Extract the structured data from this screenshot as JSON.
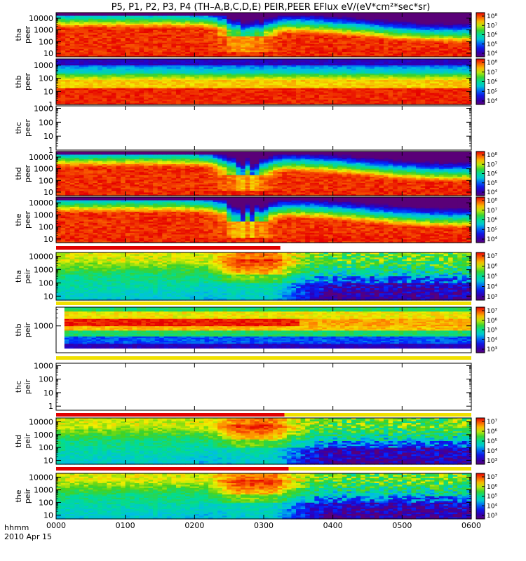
{
  "chart_data": {
    "type": "heatmap",
    "title": "P5, P1, P2, P3, P4 (TH–A,B,C,D,E) PEIR,PEER EFlux eV/(eV*cm²*sec*sr)",
    "footer": {
      "axis_label": "hhmm",
      "date": "2010 Apr 15"
    },
    "x_ticks": [
      "0000",
      "0100",
      "0200",
      "0300",
      "0400",
      "0500",
      "0600"
    ],
    "xlim": [
      "00:00",
      "06:00"
    ],
    "colorscale": "rainbow (purple → blue → cyan → green → yellow → red)",
    "panels": [
      {
        "probe": "tha",
        "species": "peer",
        "ylabel": "tha peer",
        "y_ticks": [
          "10",
          "100",
          "1000",
          "10000"
        ],
        "ylim": [
          5,
          30000
        ],
        "cb_ticks": [
          "10⁴",
          "10⁵",
          "10⁶",
          "10⁷",
          "10⁸"
        ],
        "has_data": true
      },
      {
        "probe": "thb",
        "species": "peer",
        "ylabel": "thb peer",
        "y_ticks": [
          "1",
          "10",
          "100",
          "1000"
        ],
        "ylim": [
          1,
          3000
        ],
        "cb_ticks": [
          "10⁴",
          "10⁵",
          "10⁶",
          "10⁷",
          "10⁸"
        ],
        "has_data": true
      },
      {
        "probe": "thc",
        "species": "peer",
        "ylabel": "thc peer",
        "y_ticks": [
          "1",
          "10",
          "100",
          "1000"
        ],
        "ylim": [
          1,
          1500
        ],
        "cb_ticks": [],
        "has_data": false
      },
      {
        "probe": "thd",
        "species": "peer",
        "ylabel": "thd peer",
        "y_ticks": [
          "10",
          "100",
          "1000",
          "10000"
        ],
        "ylim": [
          5,
          30000
        ],
        "cb_ticks": [
          "10⁴",
          "10⁵",
          "10⁶",
          "10⁷",
          "10⁸"
        ],
        "has_data": true
      },
      {
        "probe": "the",
        "species": "peer",
        "ylabel": "the peer",
        "y_ticks": [
          "10",
          "100",
          "1000",
          "10000"
        ],
        "ylim": [
          5,
          30000
        ],
        "cb_ticks": [
          "10⁴",
          "10⁵",
          "10⁶",
          "10⁷",
          "10⁸"
        ],
        "has_data": true
      },
      {
        "probe": "tha",
        "species": "peir",
        "ylabel": "tha peir",
        "y_ticks": [
          "10",
          "100",
          "1000",
          "10000"
        ],
        "ylim": [
          5,
          20000
        ],
        "cb_ticks": [
          "10³",
          "10⁴",
          "10⁵",
          "10⁶",
          "10⁷"
        ],
        "has_data": true
      },
      {
        "probe": "thb",
        "species": "peir",
        "ylabel": "thb peir",
        "y_ticks": [
          "1000"
        ],
        "ylim": [
          100,
          5000
        ],
        "cb_ticks": [
          "10³",
          "10⁴",
          "10⁵",
          "10⁶",
          "10⁷"
        ],
        "has_data": true
      },
      {
        "probe": "thc",
        "species": "peir",
        "ylabel": "thc peir",
        "y_ticks": [
          "1",
          "10",
          "100",
          "1000"
        ],
        "ylim": [
          0.5,
          1500
        ],
        "cb_ticks": [],
        "has_data": false
      },
      {
        "probe": "thd",
        "species": "peir",
        "ylabel": "thd peir",
        "y_ticks": [
          "10",
          "100",
          "1000",
          "10000"
        ],
        "ylim": [
          5,
          20000
        ],
        "cb_ticks": [
          "10³",
          "10⁴",
          "10⁵",
          "10⁶",
          "10⁷"
        ],
        "has_data": true
      },
      {
        "probe": "the",
        "species": "peir",
        "ylabel": "the peir",
        "y_ticks": [
          "10",
          "100",
          "1000",
          "10000"
        ],
        "ylim": [
          5,
          20000
        ],
        "cb_ticks": [
          "10³",
          "10⁴",
          "10⁵",
          "10⁶",
          "10⁷"
        ],
        "has_data": true
      }
    ]
  }
}
